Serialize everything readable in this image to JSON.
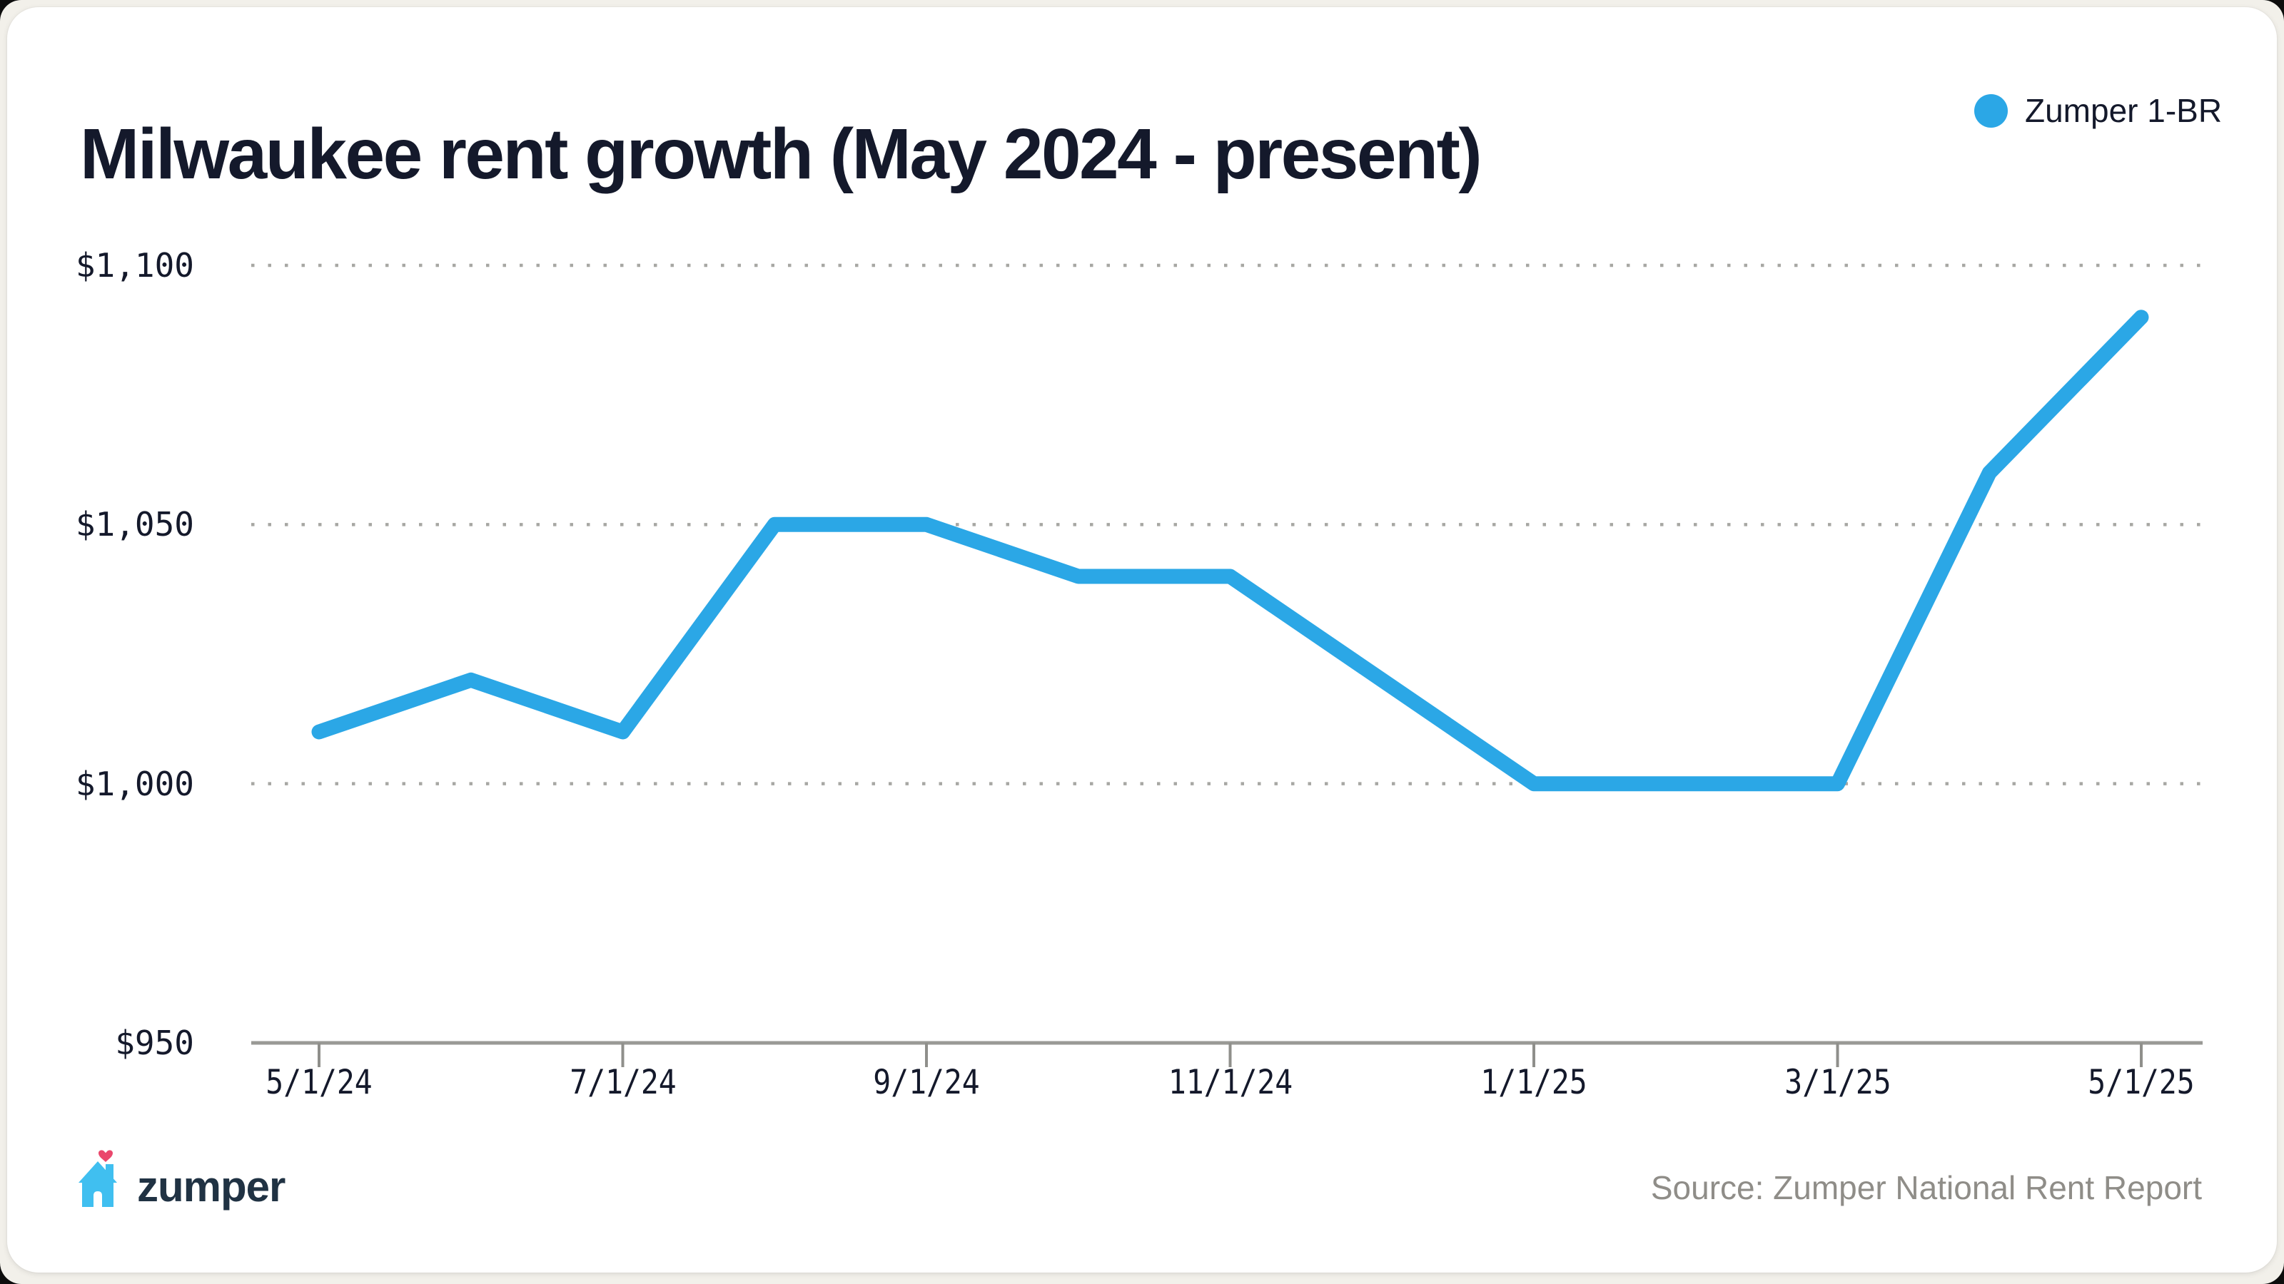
{
  "header": {
    "title": "Milwaukee rent growth (May 2024 - present)",
    "legend": {
      "label": "Zumper 1-BR",
      "dot_color": "#2BA7E6"
    }
  },
  "chart_data": {
    "type": "line",
    "title": "Milwaukee rent growth (May 2024 - present)",
    "categories": [
      "5/1/24",
      "6/1/24",
      "7/1/24",
      "8/1/24",
      "9/1/24",
      "10/1/24",
      "11/1/24",
      "12/1/24",
      "1/1/25",
      "2/1/25",
      "3/1/25",
      "4/1/25",
      "5/1/25"
    ],
    "series": [
      {
        "name": "Zumper 1-BR",
        "values": [
          1010,
          1020,
          1010,
          1050,
          1050,
          1040,
          1040,
          1020,
          1000,
          1000,
          1000,
          1060,
          1090
        ]
      }
    ],
    "ylim": [
      950,
      1100
    ],
    "y_ticks": [
      950,
      1000,
      1050,
      1100
    ],
    "y_tick_labels": [
      "$950",
      "$1,000",
      "$1,050",
      "$1,100"
    ],
    "x_tick_labels": [
      "5/1/24",
      "7/1/24",
      "9/1/24",
      "11/1/24",
      "1/1/25",
      "3/1/25",
      "5/1/25"
    ],
    "x_tick_every": 2,
    "grid": "dotted-horizontal",
    "legend_position": "top-right",
    "line_color": "#2BA7E6",
    "grid_color": "#A7A7A3",
    "axis_color": "#9A9A96",
    "tick_color": "#8F8F8B",
    "label_color": "#14192B"
  },
  "footer": {
    "brand": "zumper",
    "source": "Source: Zumper National Rent Report",
    "house_color": "#40BFF0",
    "heart_color": "#EA476C",
    "wordmark_color": "#203243"
  }
}
